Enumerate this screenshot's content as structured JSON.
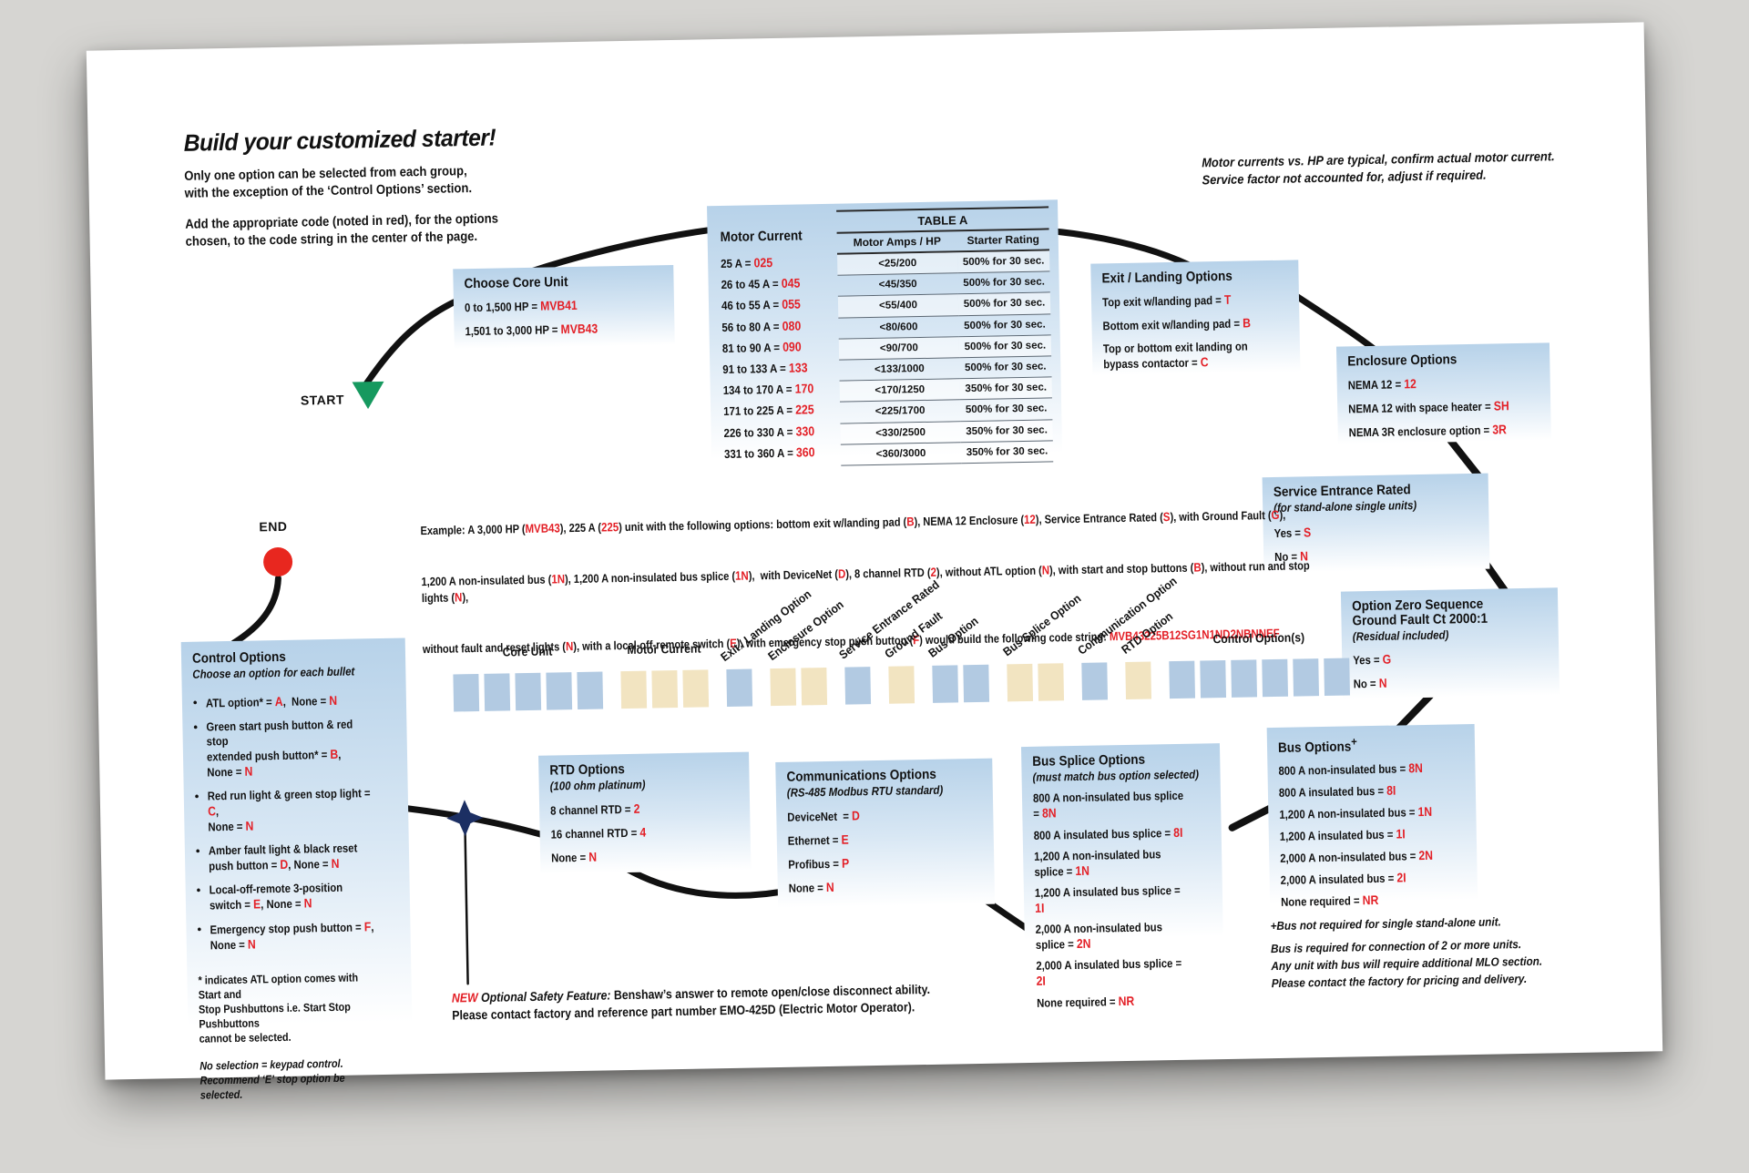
{
  "header": {
    "title": "Build your customized starter!",
    "intro1": "Only one option can be selected from each group,\nwith the exception of the ‘Control Options’ section.",
    "intro2": "Add the appropriate code (noted in red), for the options\nchosen, to the code string in the center of the page.",
    "top_right_note": "Motor currents vs. HP are typical, confirm actual motor current.\nService factor not accounted for, adjust if required."
  },
  "flow": {
    "start_label": "START",
    "end_label": "END"
  },
  "core_unit": {
    "title": "Choose Core Unit",
    "options": [
      [
        {
          "t": "0 to 1,500 HP = "
        },
        {
          "t": "MVB41",
          "red": true
        }
      ],
      [
        {
          "t": "1,501 to 3,000 HP = "
        },
        {
          "t": "MVB43",
          "red": true
        }
      ]
    ]
  },
  "table_a": {
    "title": "TABLE A",
    "left_header": "Motor Current",
    "amps_header": "Motor Amps / HP",
    "rating_header": "Starter Rating",
    "rows": [
      {
        "range": "25 A = ",
        "code": "025",
        "amps": "<25/200",
        "rating": "500% for 30 sec."
      },
      {
        "range": "26 to 45 A = ",
        "code": "045",
        "amps": "<45/350",
        "rating": "500% for 30 sec."
      },
      {
        "range": "46 to 55 A = ",
        "code": "055",
        "amps": "<55/400",
        "rating": "500% for 30 sec."
      },
      {
        "range": "56 to 80 A = ",
        "code": "080",
        "amps": "<80/600",
        "rating": "500% for 30 sec."
      },
      {
        "range": "81 to 90 A = ",
        "code": "090",
        "amps": "<90/700",
        "rating": "500% for 30 sec."
      },
      {
        "range": "91 to 133 A = ",
        "code": "133",
        "amps": "<133/1000",
        "rating": "500% for 30 sec."
      },
      {
        "range": "134 to 170 A = ",
        "code": "170",
        "amps": "<170/1250",
        "rating": "350% for 30 sec."
      },
      {
        "range": "171 to 225 A = ",
        "code": "225",
        "amps": "<225/1700",
        "rating": "500% for 30 sec."
      },
      {
        "range": "226 to 330 A = ",
        "code": "330",
        "amps": "<330/2500",
        "rating": "350% for 30 sec."
      },
      {
        "range": "331 to 360 A = ",
        "code": "360",
        "amps": "<360/3000",
        "rating": "350% for 30 sec."
      }
    ]
  },
  "exit_landing": {
    "title": "Exit / Landing Options",
    "options": [
      [
        {
          "t": "Top exit w/landing pad = "
        },
        {
          "t": "T",
          "red": true
        }
      ],
      [
        {
          "t": "Bottom exit w/landing pad = "
        },
        {
          "t": "B",
          "red": true
        }
      ],
      [
        {
          "t": "Top or bottom exit landing on\nbypass contactor = "
        },
        {
          "t": "C",
          "red": true
        }
      ]
    ]
  },
  "enclosure": {
    "title": "Enclosure Options",
    "options": [
      [
        {
          "t": "NEMA 12 = "
        },
        {
          "t": "12",
          "red": true
        }
      ],
      [
        {
          "t": "NEMA 12 with space heater = "
        },
        {
          "t": "SH",
          "red": true
        }
      ],
      [
        {
          "t": "NEMA 3R enclosure option = "
        },
        {
          "t": "3R",
          "red": true
        }
      ]
    ]
  },
  "service_entrance": {
    "title": "Service Entrance Rated",
    "subtitle": "(for stand-alone single units)",
    "options": [
      [
        {
          "t": "Yes = "
        },
        {
          "t": "S",
          "red": true
        }
      ],
      [
        {
          "t": "No = "
        },
        {
          "t": "N",
          "red": true
        }
      ]
    ]
  },
  "ground_fault": {
    "title": "Option Zero Sequence\nGround Fault Ct 2000:1",
    "subtitle": "(Residual included)",
    "options": [
      [
        {
          "t": "Yes = "
        },
        {
          "t": "G",
          "red": true
        }
      ],
      [
        {
          "t": "No = "
        },
        {
          "t": "N",
          "red": true
        }
      ]
    ]
  },
  "bus_options": {
    "title": "Bus Options",
    "title_sup": "+",
    "options": [
      [
        {
          "t": "800 A non-insulated bus = "
        },
        {
          "t": "8N",
          "red": true
        }
      ],
      [
        {
          "t": "800 A insulated bus = "
        },
        {
          "t": "8I",
          "red": true
        }
      ],
      [
        {
          "t": "1,200 A non-insulated bus = "
        },
        {
          "t": "1N",
          "red": true
        }
      ],
      [
        {
          "t": "1,200 A insulated bus = "
        },
        {
          "t": "1I",
          "red": true
        }
      ],
      [
        {
          "t": "2,000 A non-insulated bus = "
        },
        {
          "t": "2N",
          "red": true
        }
      ],
      [
        {
          "t": "2,000 A insulated bus = "
        },
        {
          "t": "2I",
          "red": true
        }
      ],
      [
        {
          "t": "None required = "
        },
        {
          "t": "NR",
          "red": true
        }
      ]
    ],
    "footnote1": "+Bus not required for single stand-alone unit.",
    "footnote2": "Bus is required for connection of 2 or more units.\nAny unit with bus will require additional MLO section.\nPlease contact the factory for pricing and delivery."
  },
  "bus_splice": {
    "title": "Bus Splice Options",
    "subtitle": "(must match bus option selected)",
    "options": [
      [
        {
          "t": "800 A non-insulated bus splice = "
        },
        {
          "t": "8N",
          "red": true
        }
      ],
      [
        {
          "t": "800 A insulated bus splice = "
        },
        {
          "t": "8I",
          "red": true
        }
      ],
      [
        {
          "t": "1,200 A non-insulated bus splice = "
        },
        {
          "t": "1N",
          "red": true
        }
      ],
      [
        {
          "t": "1,200 A insulated bus splice = "
        },
        {
          "t": "1I",
          "red": true
        }
      ],
      [
        {
          "t": "2,000 A non-insulated bus splice = "
        },
        {
          "t": "2N",
          "red": true
        }
      ],
      [
        {
          "t": "2,000 A insulated bus splice = "
        },
        {
          "t": "2I",
          "red": true
        }
      ],
      [
        {
          "t": "None required = "
        },
        {
          "t": "NR",
          "red": true
        }
      ]
    ]
  },
  "communications": {
    "title": "Communications Options",
    "subtitle": "(RS-485 Modbus RTU standard)",
    "options": [
      [
        {
          "t": "DeviceNet  = "
        },
        {
          "t": "D",
          "red": true
        }
      ],
      [
        {
          "t": "Ethernet = "
        },
        {
          "t": "E",
          "red": true
        }
      ],
      [
        {
          "t": "Profibus = "
        },
        {
          "t": "P",
          "red": true
        }
      ],
      [
        {
          "t": "None = "
        },
        {
          "t": "N",
          "red": true
        }
      ]
    ]
  },
  "rtd": {
    "title": "RTD Options",
    "subtitle": "(100 ohm platinum)",
    "options": [
      [
        {
          "t": "8 channel RTD = "
        },
        {
          "t": "2",
          "red": true
        }
      ],
      [
        {
          "t": "16 channel RTD = "
        },
        {
          "t": "4",
          "red": true
        }
      ],
      [
        {
          "t": "None = "
        },
        {
          "t": "N",
          "red": true
        }
      ]
    ]
  },
  "control": {
    "title": "Control Options",
    "subtitle": "Choose an option for each bullet",
    "bullets": [
      [
        {
          "t": "ATL option* = "
        },
        {
          "t": "A",
          "red": true
        },
        {
          "t": ",  None = "
        },
        {
          "t": "N",
          "red": true
        }
      ],
      [
        {
          "t": "Green start push button & red stop\nextended push button* = "
        },
        {
          "t": "B",
          "red": true
        },
        {
          "t": ",\nNone = "
        },
        {
          "t": "N",
          "red": true
        }
      ],
      [
        {
          "t": "Red run light & green stop light = "
        },
        {
          "t": "C",
          "red": true
        },
        {
          "t": ",\nNone = "
        },
        {
          "t": "N",
          "red": true
        }
      ],
      [
        {
          "t": "Amber fault light & black reset\npush button = "
        },
        {
          "t": "D",
          "red": true
        },
        {
          "t": ", None = "
        },
        {
          "t": "N",
          "red": true
        }
      ],
      [
        {
          "t": "Local-off-remote 3-position\nswitch = "
        },
        {
          "t": "E",
          "red": true
        },
        {
          "t": ", None = "
        },
        {
          "t": "N",
          "red": true
        }
      ],
      [
        {
          "t": "Emergency stop push button = "
        },
        {
          "t": "F",
          "red": true
        },
        {
          "t": ",\nNone = "
        },
        {
          "t": "N",
          "red": true
        }
      ]
    ],
    "footnote": "* indicates ATL option comes with Start and\nStop Pushbuttons i.e. Start Stop Pushbuttons\ncannot be selected.",
    "note": "No selection = keypad control.\nRecommend ‘E’ stop option be selected."
  },
  "example": {
    "lines": [
      [
        {
          "t": "Example: A 3,000 HP ("
        },
        {
          "t": "MVB43",
          "red": true
        },
        {
          "t": "), 225 A ("
        },
        {
          "t": "225",
          "red": true
        },
        {
          "t": ") unit with the following options: bottom exit w/landing pad ("
        },
        {
          "t": "B",
          "red": true
        },
        {
          "t": "), NEMA 12 Enclosure ("
        },
        {
          "t": "12",
          "red": true
        },
        {
          "t": "), Service Entrance Rated ("
        },
        {
          "t": "S",
          "red": true
        },
        {
          "t": "), with Ground Fault ("
        },
        {
          "t": "G",
          "red": true
        },
        {
          "t": "),"
        }
      ],
      [
        {
          "t": "1,200 A non-insulated bus ("
        },
        {
          "t": "1N",
          "red": true
        },
        {
          "t": "), 1,200 A non-insulated bus splice ("
        },
        {
          "t": "1N",
          "red": true
        },
        {
          "t": "),  with DeviceNet ("
        },
        {
          "t": "D",
          "red": true
        },
        {
          "t": "), 8 channel RTD ("
        },
        {
          "t": "2",
          "red": true
        },
        {
          "t": "), without ATL option ("
        },
        {
          "t": "N",
          "red": true
        },
        {
          "t": "), with start and stop buttons ("
        },
        {
          "t": "B",
          "red": true
        },
        {
          "t": "), without run and stop lights ("
        },
        {
          "t": "N",
          "red": true
        },
        {
          "t": "),"
        }
      ],
      [
        {
          "t": "without fault and reset lights ("
        },
        {
          "t": "N",
          "red": true
        },
        {
          "t": "), with a local-off-remote switch ("
        },
        {
          "t": "E",
          "red": true
        },
        {
          "t": "), with emergency stop push button ("
        },
        {
          "t": "F",
          "red": true
        },
        {
          "t": ") would build the following code string: "
        },
        {
          "t": "MVB43225B12SG1N1ND2NBNNEF",
          "red": true
        }
      ]
    ]
  },
  "code_squares": {
    "groups": [
      {
        "label": "Core Unit",
        "count": 5,
        "color": "blue"
      },
      {
        "label": "Motor Current",
        "count": 3,
        "color": "tan"
      },
      {
        "label": "Exit / Landing Option",
        "count": 1,
        "color": "blue"
      },
      {
        "label": "Enclosure Option",
        "count": 2,
        "color": "tan"
      },
      {
        "label": "Service Entrance Rated",
        "count": 1,
        "color": "blue"
      },
      {
        "label": "Ground Fault",
        "count": 1,
        "color": "tan"
      },
      {
        "label": "Bus Option",
        "count": 2,
        "color": "blue"
      },
      {
        "label": "Bus Splice Option",
        "count": 2,
        "color": "tan"
      },
      {
        "label": "Communication Option",
        "count": 1,
        "color": "blue"
      },
      {
        "label": "RTD Option",
        "count": 1,
        "color": "tan"
      },
      {
        "label": "Control Option(s)",
        "count": 6,
        "color": "blue"
      }
    ]
  },
  "new_feature": {
    "line1": [
      {
        "t": "NEW ",
        "red": true,
        "italic": true
      },
      {
        "t": "Optional Safety Feature:",
        "italic": true
      },
      {
        "t": " Benshaw’s answer to remote open/close disconnect ability."
      }
    ],
    "line2": "Please contact factory and reference part number EMO-425D (Electric Motor Operator)."
  },
  "colors": {
    "red_code": "#e31f26",
    "blue_square": "#b2cae2",
    "tan_square": "#f2e4c1",
    "box_blue_top": "#b7d2e9",
    "start_green": "#16995f",
    "end_red": "#e8271f",
    "star_navy": "#1c2f63"
  }
}
